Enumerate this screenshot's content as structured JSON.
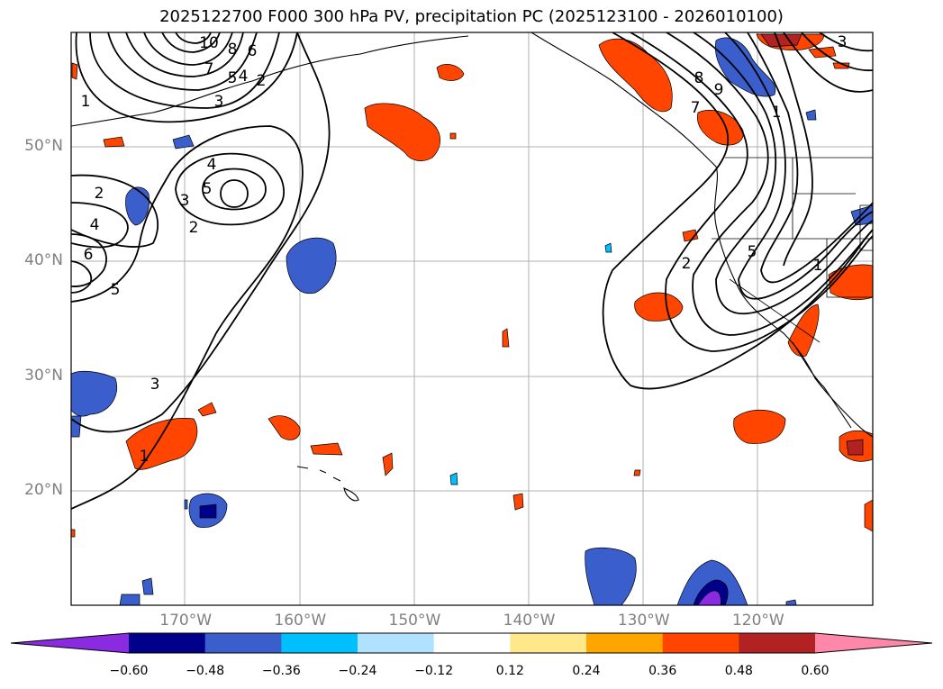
{
  "title": "2025122700 F000 300 hPa PV, precipitation PC (2025123100 - 2026010100)",
  "lat_labels": [
    {
      "text": "50°N",
      "lat": 50
    },
    {
      "text": "40°N",
      "lat": 40
    },
    {
      "text": "30°N",
      "lat": 30
    },
    {
      "text": "20°N",
      "lat": 20
    }
  ],
  "lon_labels": [
    {
      "text": "170°W",
      "lon": -170
    },
    {
      "text": "160°W",
      "lon": -160
    },
    {
      "text": "150°W",
      "lon": -150
    },
    {
      "text": "140°W",
      "lon": -140
    },
    {
      "text": "130°W",
      "lon": -130
    },
    {
      "text": "120°W",
      "lon": -120
    }
  ],
  "colorbar": {
    "ticks": [
      "−0.60",
      "−0.48",
      "−0.36",
      "−0.24",
      "−0.12",
      "0.12",
      "0.24",
      "0.36",
      "0.48",
      "0.60"
    ],
    "bounds": [
      -0.6,
      -0.48,
      -0.36,
      -0.24,
      -0.12,
      0.12,
      0.24,
      0.36,
      0.48,
      0.6
    ],
    "colors": [
      "#8a2be2",
      "#00008b",
      "#3a5fcd",
      "#00bfff",
      "#b0e2ff",
      "#ffffff",
      "#ffe88a",
      "#ffa500",
      "#ff4500",
      "#b22222",
      "#ff88aa"
    ],
    "extend": "both"
  },
  "contour_labels": [
    "10",
    "8",
    "7",
    "6",
    "5",
    "4",
    "3",
    "2",
    "1",
    "4",
    "5",
    "3",
    "2",
    "2",
    "4",
    "6",
    "5",
    "3",
    "1",
    "1",
    "2",
    "5",
    "8",
    "9",
    "7",
    "1",
    "3"
  ]
}
